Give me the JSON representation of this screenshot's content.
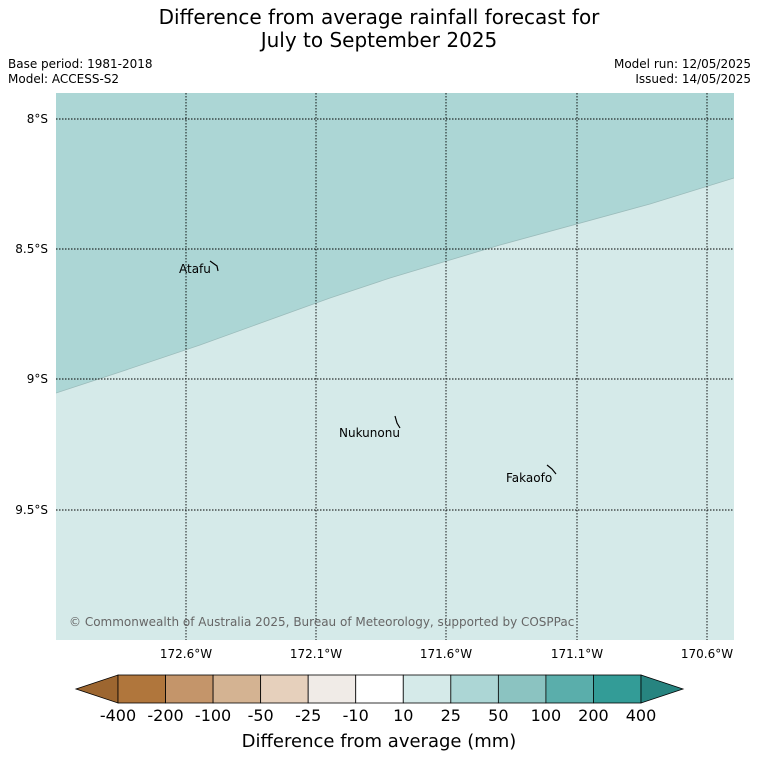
{
  "title": {
    "line1": "Difference from average rainfall forecast for",
    "line2": "July to September 2025"
  },
  "meta": {
    "base_period": "Base period: 1981-2018",
    "model": "Model: ACCESS-S2",
    "model_run": "Model run: 12/05/2025",
    "issued": "Issued: 14/05/2025"
  },
  "map": {
    "lat_labels": [
      "8°S",
      "8.5°S",
      "9°S",
      "9.5°S"
    ],
    "lon_labels": [
      "172.6°W",
      "172.1°W",
      "171.6°W",
      "171.1°W",
      "170.6°W"
    ],
    "places": [
      {
        "name": "Atafu"
      },
      {
        "name": "Nukunonu"
      },
      {
        "name": "Fakaofo"
      }
    ],
    "region_colors": {
      "upper": "#acd6d5",
      "lower": "#d5eae9"
    },
    "copyright": "© Commonwealth of Australia 2025, Bureau of Meteorology, supported by COSPPac"
  },
  "colorbar": {
    "title": "Difference from average (mm)",
    "tick_labels": [
      "-400",
      "-200",
      "-100",
      "-50",
      "-25",
      "-10",
      "10",
      "25",
      "50",
      "100",
      "200",
      "400"
    ],
    "colors": [
      "#9d6630",
      "#b0763c",
      "#c4956a",
      "#d4b392",
      "#e6d0bc",
      "#f0ebe7",
      "#ffffff",
      "#d5eae9",
      "#acd6d5",
      "#8bc3c1",
      "#5aaeab",
      "#339c97",
      "#278480"
    ]
  }
}
